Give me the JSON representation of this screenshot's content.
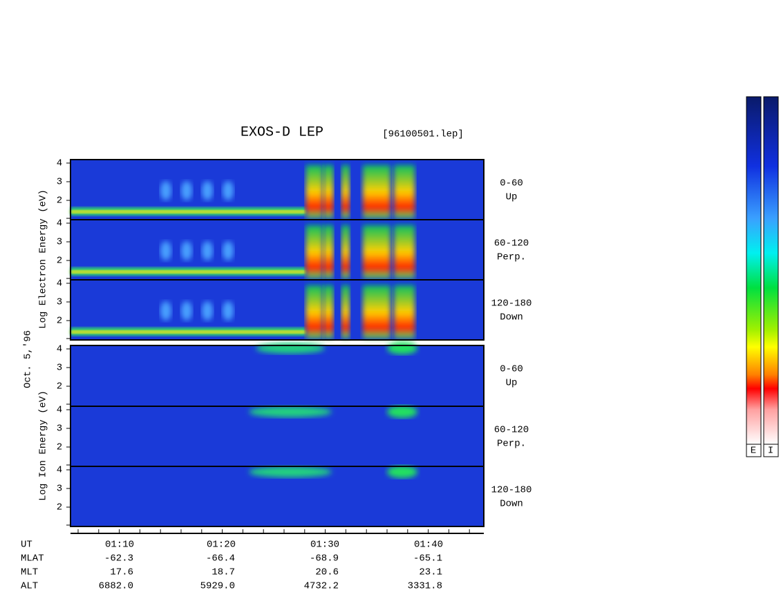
{
  "header": {
    "title": "EXOS-D LEP",
    "file": "[96100501.lep]"
  },
  "date": "Oct. 5,'96",
  "energy_ticks": [
    "4",
    "3",
    "2"
  ],
  "electron": {
    "axis_label": "Log Electron Energy (eV)",
    "panels": [
      {
        "range": "0-60",
        "direction": "Up"
      },
      {
        "range": "60-120",
        "direction": "Perp."
      },
      {
        "range": "120-180",
        "direction": "Down"
      }
    ]
  },
  "ion": {
    "axis_label": "Log Ion Energy (eV)",
    "panels": [
      {
        "range": "0-60",
        "direction": "Up"
      },
      {
        "range": "60-120",
        "direction": "Perp."
      },
      {
        "range": "120-180",
        "direction": "Down"
      }
    ]
  },
  "footer": {
    "rows": [
      {
        "label": "UT",
        "values": [
          "01:10",
          "01:20",
          "01:30",
          "01:40"
        ]
      },
      {
        "label": "MLAT",
        "values": [
          "-62.3",
          "-66.4",
          "-68.9",
          "-65.1"
        ]
      },
      {
        "label": "MLT",
        "values": [
          "17.6",
          "18.7",
          "20.6",
          "23.1"
        ]
      },
      {
        "label": "ALT",
        "values": [
          "6882.0",
          "5929.0",
          "4732.2",
          "3331.8"
        ]
      }
    ]
  },
  "colorbar": {
    "labels": [
      "E",
      "I"
    ]
  }
}
